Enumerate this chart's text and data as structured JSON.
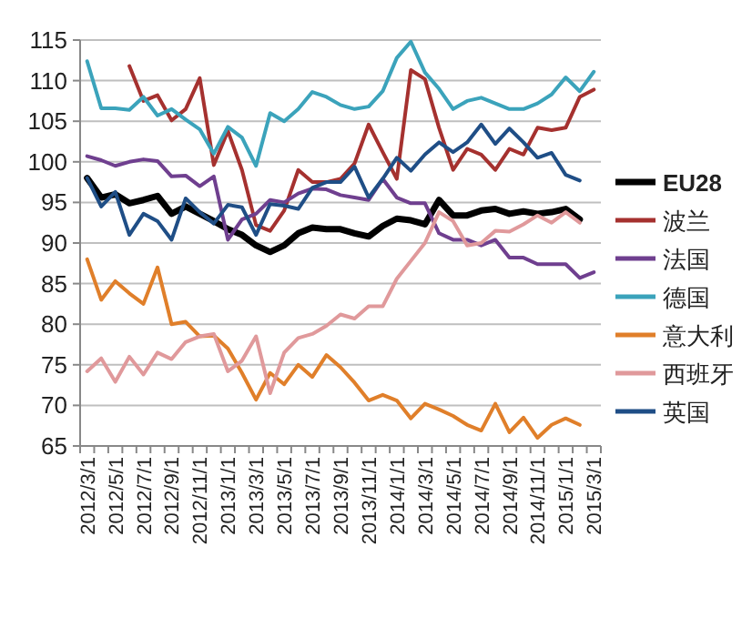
{
  "chart_data": {
    "type": "line",
    "categories": [
      "2012/3/1",
      null,
      "2012/5/1",
      null,
      "2012/7/1",
      null,
      "2012/9/1",
      null,
      "2012/11/1",
      null,
      "2013/1/1",
      null,
      "2013/3/1",
      null,
      "2013/5/1",
      null,
      "2013/7/1",
      null,
      "2013/9/1",
      null,
      "2013/11/1",
      null,
      "2014/1/1",
      null,
      "2014/3/1",
      null,
      "2014/5/1",
      null,
      "2014/7/1",
      null,
      "2014/9/1",
      null,
      "2014/11/1",
      null,
      "2015/1/1",
      null,
      "2015/3/1"
    ],
    "ylim": [
      65,
      115
    ],
    "yticks": [
      65,
      70,
      75,
      80,
      85,
      90,
      95,
      100,
      105,
      110,
      115
    ],
    "grid": "y",
    "legend": "right",
    "series": [
      {
        "name": "EU28",
        "color": "#000000",
        "values": [
          98,
          95.6,
          96,
          94.9,
          95.3,
          95.8,
          93.6,
          94.5,
          93.6,
          92.7,
          91.7,
          91,
          89.7,
          88.9,
          89.7,
          91.2,
          91.9,
          91.7,
          91.7,
          91.2,
          90.8,
          92.1,
          93,
          92.8,
          92.3,
          95.3,
          93.4,
          93.4,
          94,
          94.2,
          93.6,
          93.9,
          93.6,
          93.8,
          94.2,
          92.9,
          null
        ]
      },
      {
        "name": "波兰",
        "color": "#a5312f",
        "values": [
          null,
          null,
          null,
          111.8,
          107.5,
          108.2,
          105.1,
          106.5,
          110.3,
          99.6,
          103.8,
          99,
          92.2,
          91.5,
          94,
          99,
          97.5,
          97.5,
          97.9,
          99.8,
          104.6,
          101.2,
          97.9,
          111.3,
          110.2,
          104.2,
          99,
          101.6,
          100.9,
          99,
          101.6,
          100.9,
          104.2,
          103.9,
          104.2,
          108,
          108.9
        ]
      },
      {
        "name": "法国",
        "color": "#6f3f8f",
        "values": [
          100.7,
          100.2,
          99.5,
          100,
          100.3,
          100.1,
          98.2,
          98.3,
          97,
          98.2,
          90.4,
          92.9,
          93.6,
          95.3,
          95,
          96.1,
          96.7,
          96.6,
          95.9,
          95.6,
          95.3,
          97.9,
          95.6,
          94.9,
          94.9,
          91.2,
          90.4,
          90.4,
          89.7,
          90.4,
          88.2,
          88.2,
          87.4,
          87.4,
          87.4,
          85.7,
          86.4
        ]
      },
      {
        "name": "德国",
        "color": "#3ba3bb",
        "values": [
          112.4,
          106.6,
          106.6,
          106.4,
          108,
          105.7,
          106.5,
          105.2,
          104,
          101,
          104.3,
          103,
          99.5,
          106,
          105,
          106.5,
          108.6,
          108,
          107,
          106.5,
          106.8,
          108.7,
          112.8,
          114.8,
          111,
          109,
          106.5,
          107.5,
          107.9,
          107.2,
          106.5,
          106.5,
          107.2,
          108.3,
          110.4,
          108.7,
          111.1
        ]
      },
      {
        "name": "意大利",
        "color": "#e07f2a",
        "values": [
          88,
          83,
          85.3,
          83.8,
          82.5,
          87,
          80,
          80.3,
          78.5,
          78.6,
          77,
          74,
          70.7,
          74,
          72.6,
          75,
          73.5,
          76.2,
          74.7,
          72.8,
          70.6,
          71.3,
          70.6,
          68.4,
          70.2,
          69.5,
          68.7,
          67.6,
          66.9,
          70.2,
          66.7,
          68.5,
          66,
          67.6,
          68.4,
          67.6,
          null
        ]
      },
      {
        "name": "西班牙",
        "color": "#e0999b",
        "values": [
          74.2,
          75.8,
          72.9,
          76,
          73.8,
          76.5,
          75.7,
          77.8,
          78.5,
          78.8,
          74.2,
          75.5,
          78.5,
          71.5,
          76.5,
          78.3,
          78.8,
          79.8,
          81.2,
          80.7,
          82.2,
          82.2,
          85.6,
          87.8,
          90,
          93.8,
          92.7,
          89.7,
          90,
          91.5,
          91.4,
          92.3,
          93.4,
          92.5,
          93.8,
          92.5,
          null
        ]
      },
      {
        "name": "英国",
        "color": "#1f4e86",
        "values": [
          98,
          94.5,
          96.3,
          91,
          93.6,
          92.7,
          90.4,
          95.5,
          93.8,
          92.4,
          94.7,
          94.4,
          91,
          94.8,
          94.6,
          94.2,
          96.8,
          97.5,
          97.5,
          99.4,
          95.6,
          97.9,
          100.5,
          98.9,
          100.9,
          102.4,
          101.2,
          102.4,
          104.6,
          102.2,
          104.1,
          102.4,
          100.5,
          101.1,
          98.4,
          97.7,
          null
        ]
      }
    ]
  }
}
